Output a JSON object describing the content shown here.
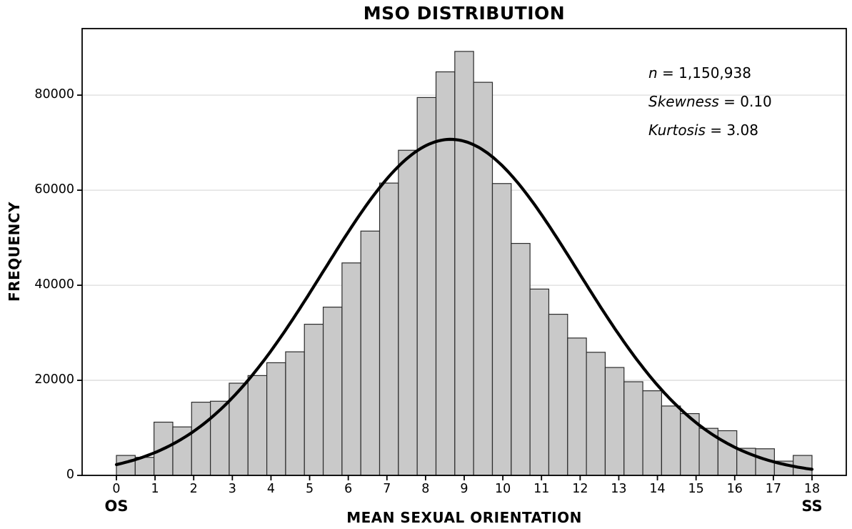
{
  "figure": {
    "title": "MSO DISTRIBUTION",
    "x_axis_label": "MEAN SEXUAL ORIENTATION",
    "y_axis_label": "FREQUENCY",
    "x_left_anchor_label": "OS",
    "x_right_anchor_label": "SS"
  },
  "annotations": [
    {
      "italic": "n",
      "rest": " = 1,150,938"
    },
    {
      "italic": "Skewness",
      "rest": " = 0.10"
    },
    {
      "italic": "Kurtosis",
      "rest": " = 3.08"
    }
  ],
  "chart_data": {
    "type": "bar",
    "subtype": "histogram-with-normal-curve",
    "title": "MSO DISTRIBUTION",
    "xlabel": "MEAN SEXUAL ORIENTATION",
    "ylabel": "FREQUENCY",
    "xlim": [
      0,
      18
    ],
    "ylim": [
      0,
      94000
    ],
    "x_ticks": [
      0,
      1,
      2,
      3,
      4,
      5,
      6,
      7,
      8,
      9,
      10,
      11,
      12,
      13,
      14,
      15,
      16,
      17,
      18
    ],
    "y_ticks": [
      0,
      20000,
      40000,
      60000,
      80000
    ],
    "grid": "horizontal-only",
    "legend": "none",
    "bins": {
      "start": 0,
      "end": 18,
      "count": 37
    },
    "frequencies": [
      4200,
      3800,
      11200,
      10200,
      15400,
      15600,
      19400,
      21000,
      23700,
      26000,
      31800,
      35400,
      44700,
      51400,
      61500,
      68400,
      79500,
      84900,
      89200,
      82700,
      61400,
      48800,
      39200,
      33900,
      28900,
      25900,
      22700,
      19700,
      17800,
      14600,
      13000,
      9900,
      9400,
      5700,
      5600,
      3000,
      4200
    ],
    "normal_curve": {
      "mu": 8.65,
      "sigma": 3.3,
      "peak": 70700
    },
    "colors": {
      "bar_fill": "#c9c9c9",
      "bar_edge": "#2b2b2b",
      "curve": "#000000",
      "grid": "#d8d8d8",
      "spine": "#000000",
      "background": "#ffffff"
    }
  }
}
